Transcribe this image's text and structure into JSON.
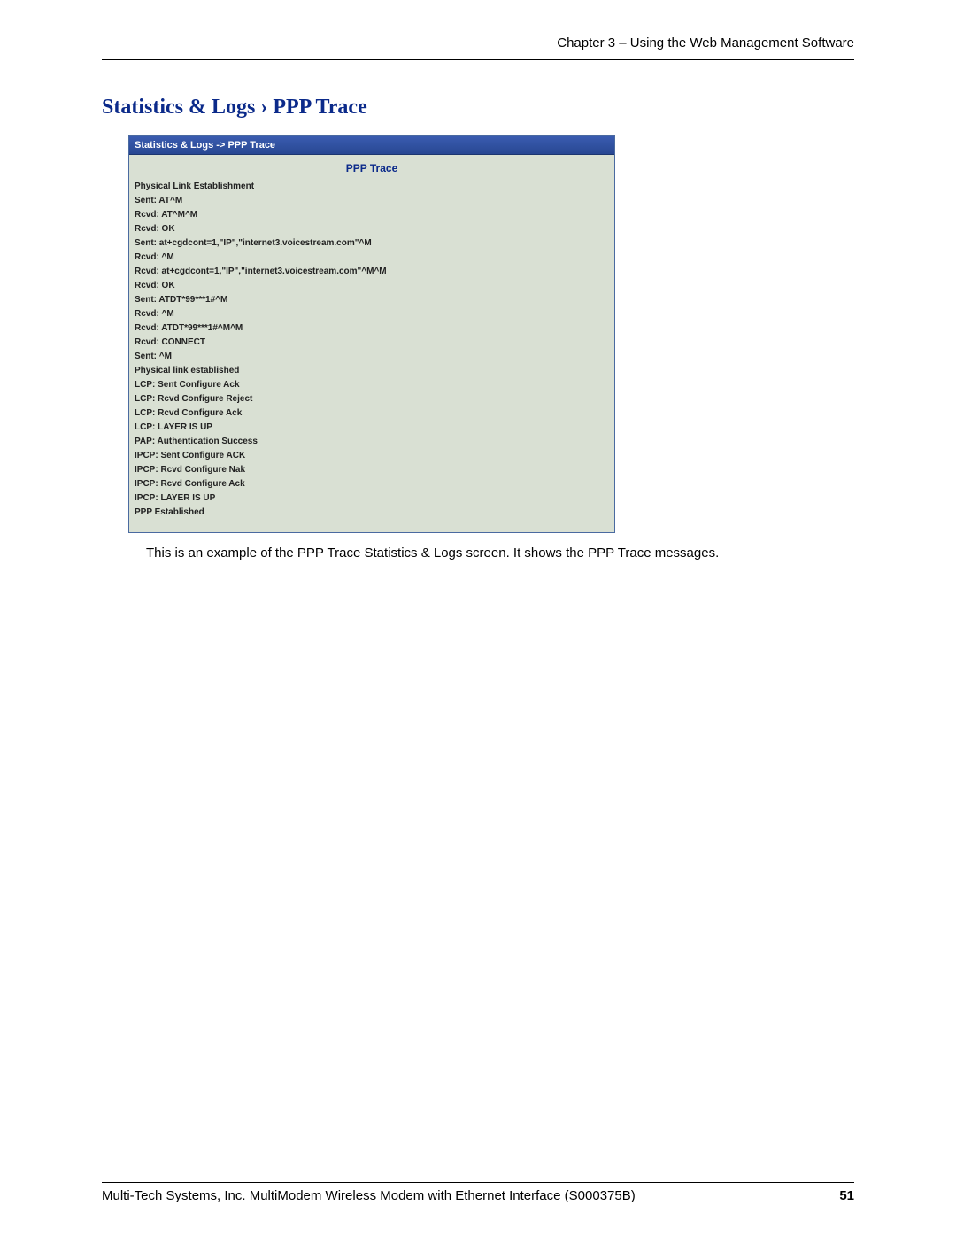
{
  "header": {
    "chapter_text": "Chapter 3 – Using the Web Management Software"
  },
  "section": {
    "title": "Statistics & Logs › PPP Trace"
  },
  "panel": {
    "breadcrumb": "Statistics & Logs  ->  PPP Trace",
    "title": "PPP Trace",
    "lines": [
      "Physical Link Establishment",
      "Sent: AT^M",
      "Rcvd: AT^M^M",
      "Rcvd: OK",
      "Sent: at+cgdcont=1,\"IP\",\"internet3.voicestream.com\"^M",
      "Rcvd: ^M",
      "Rcvd: at+cgdcont=1,\"IP\",\"internet3.voicestream.com\"^M^M",
      "Rcvd: OK",
      "Sent: ATDT*99***1#^M",
      "Rcvd: ^M",
      "Rcvd: ATDT*99***1#^M^M",
      "Rcvd: CONNECT",
      "Sent: ^M",
      "Physical link established",
      "LCP: Sent Configure Ack",
      "LCP: Rcvd Configure Reject",
      "LCP: Rcvd Configure Ack",
      "LCP: LAYER IS UP",
      "PAP: Authentication Success",
      "IPCP: Sent Configure ACK",
      "IPCP: Rcvd Configure Nak",
      "IPCP: Rcvd Configure Ack",
      "IPCP: LAYER IS UP",
      "PPP Established"
    ]
  },
  "caption": "This is an example of the PPP Trace Statistics & Logs screen. It shows the PPP Trace messages.",
  "footer": {
    "text": "Multi-Tech Systems, Inc. MultiModem Wireless Modem with Ethernet Interface (S000375B)",
    "page": "51"
  }
}
